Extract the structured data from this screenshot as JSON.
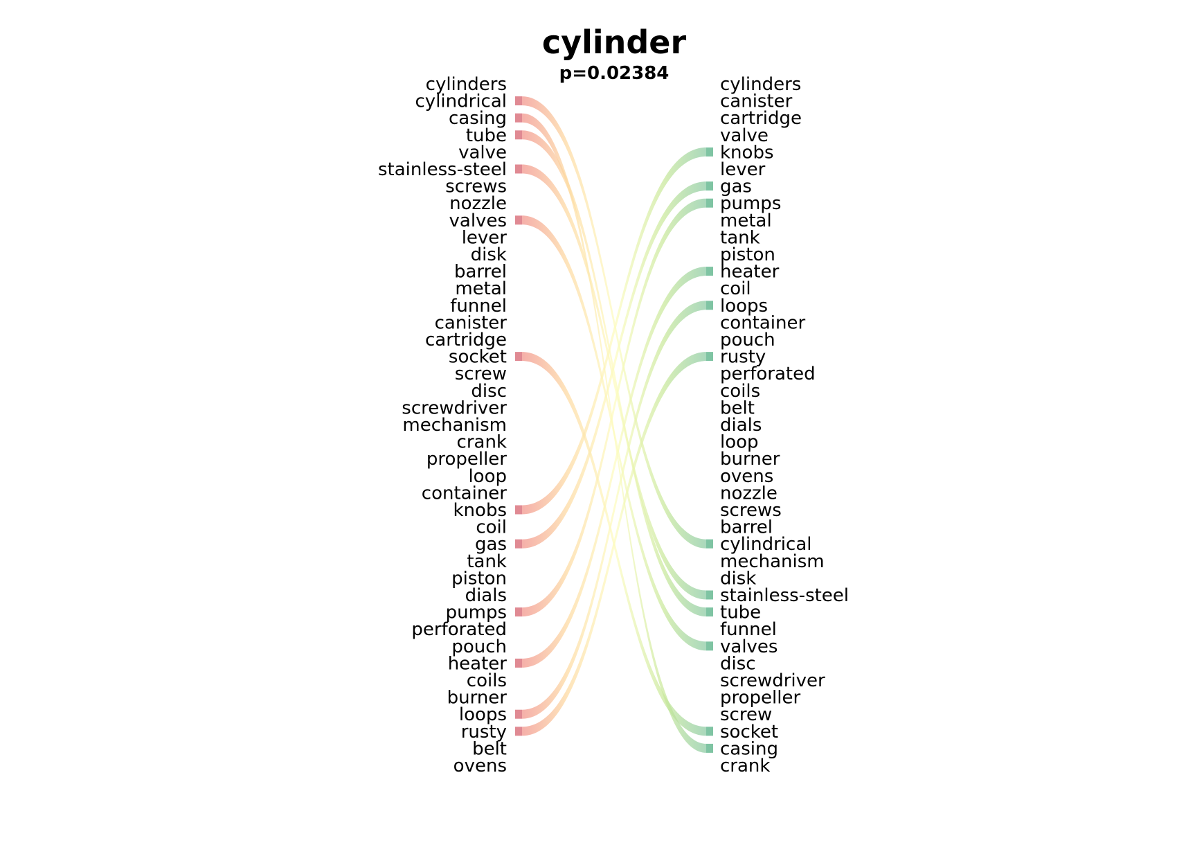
{
  "chart_data": {
    "type": "bump",
    "title": "cylinder",
    "subtitle": "p=0.02384",
    "left_labels": [
      "cylinders",
      "cylindrical",
      "casing",
      "tube",
      "valve",
      "stainless-steel",
      "screws",
      "nozzle",
      "valves",
      "lever",
      "disk",
      "barrel",
      "metal",
      "funnel",
      "canister",
      "cartridge",
      "socket",
      "screw",
      "disc",
      "screwdriver",
      "mechanism",
      "crank",
      "propeller",
      "loop",
      "container",
      "knobs",
      "coil",
      "gas",
      "tank",
      "piston",
      "dials",
      "pumps",
      "perforated",
      "pouch",
      "heater",
      "coils",
      "burner",
      "loops",
      "rusty",
      "belt",
      "ovens"
    ],
    "right_labels": [
      "cylinders",
      "canister",
      "cartridge",
      "valve",
      "knobs",
      "lever",
      "gas",
      "pumps",
      "metal",
      "tank",
      "piston",
      "heater",
      "coil",
      "loops",
      "container",
      "pouch",
      "rusty",
      "perforated",
      "coils",
      "belt",
      "dials",
      "loop",
      "burner",
      "ovens",
      "nozzle",
      "screws",
      "barrel",
      "cylindrical",
      "mechanism",
      "disk",
      "stainless-steel",
      "tube",
      "funnel",
      "valves",
      "disc",
      "screwdriver",
      "propeller",
      "screw",
      "socket",
      "casing",
      "crank"
    ],
    "links": [
      {
        "term": "cylindrical",
        "left_rank": 2,
        "right_rank": 28
      },
      {
        "term": "casing",
        "left_rank": 3,
        "right_rank": 40
      },
      {
        "term": "tube",
        "left_rank": 4,
        "right_rank": 32
      },
      {
        "term": "stainless-steel",
        "left_rank": 6,
        "right_rank": 31
      },
      {
        "term": "valves",
        "left_rank": 9,
        "right_rank": 34
      },
      {
        "term": "socket",
        "left_rank": 17,
        "right_rank": 39
      },
      {
        "term": "knobs",
        "left_rank": 26,
        "right_rank": 5
      },
      {
        "term": "gas",
        "left_rank": 28,
        "right_rank": 7
      },
      {
        "term": "pumps",
        "left_rank": 32,
        "right_rank": 8
      },
      {
        "term": "heater",
        "left_rank": 35,
        "right_rank": 12
      },
      {
        "term": "loops",
        "left_rank": 38,
        "right_rank": 14
      },
      {
        "term": "rusty",
        "left_rank": 39,
        "right_rank": 17
      }
    ],
    "colors": {
      "left_marker": "#e08a93",
      "right_marker": "#7fc4a3",
      "gradient_stops": [
        "#f08a86",
        "#fdd9a0",
        "#fdfcc0",
        "#c8e89a",
        "#7fc4a3"
      ]
    }
  }
}
